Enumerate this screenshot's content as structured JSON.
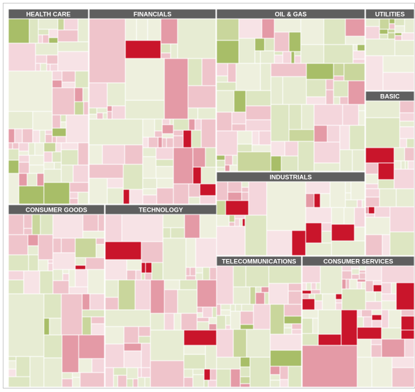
{
  "chart_data": {
    "type": "treemap",
    "colors": {
      "header_bg": "#5f5f5f",
      "header_text": "#ffffff",
      "border": "#ffffff",
      "outer_frame": "#c8c8c8",
      "palette": [
        "#c9152b",
        "#e49aa6",
        "#efc4cb",
        "#f4d6dc",
        "#f7e3e6",
        "#eef0de",
        "#e7ecd3",
        "#dde6c2",
        "#c9d69c",
        "#a8be68"
      ]
    },
    "sectors": [
      {
        "name": "HEALTH CARE"
      },
      {
        "name": "FINANCIALS"
      },
      {
        "name": "OIL & GAS"
      },
      {
        "name": "UTILITIES"
      },
      {
        "name": "BASIC"
      },
      {
        "name": "INDUSTRIALS"
      },
      {
        "name": "CONSUMER GOODS"
      },
      {
        "name": "TECHNOLOGY"
      },
      {
        "name": "TELECOMMUNICATIONS"
      },
      {
        "name": "CONSUMER SERVICES"
      }
    ]
  }
}
